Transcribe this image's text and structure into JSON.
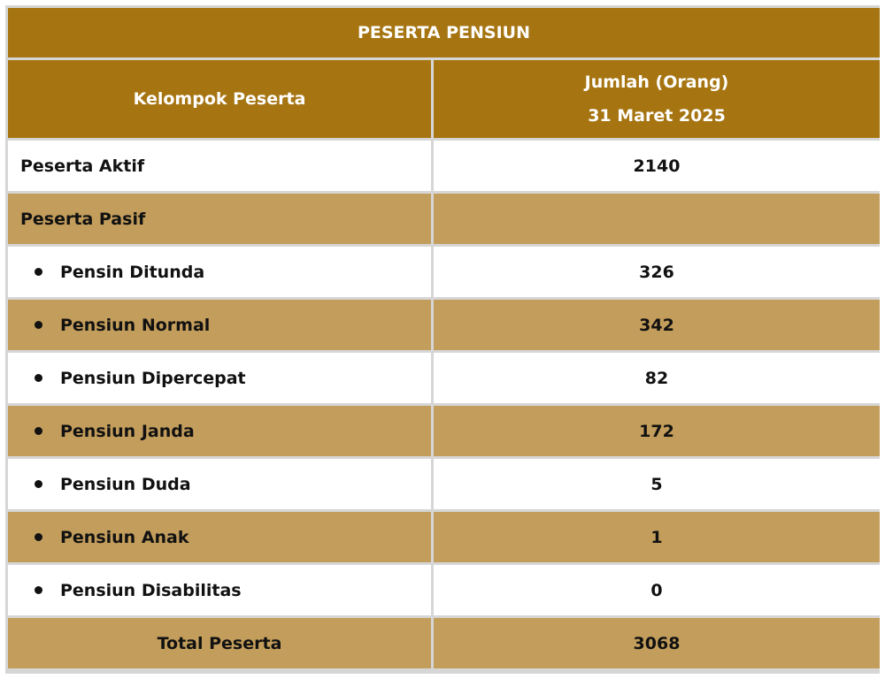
{
  "table": {
    "title": "PESERTA PENSIUN",
    "header": {
      "col1": "Kelompok Peserta",
      "col2_line1": "Jumlah (Orang)",
      "col2_line2": "31 Maret 2025"
    },
    "rows": [
      {
        "label": "Peserta Aktif",
        "value": "2140"
      },
      {
        "label": "Peserta Pasif",
        "value": ""
      },
      {
        "label": "Pensin Ditunda",
        "value": "326"
      },
      {
        "label": "Pensiun Normal",
        "value": "342"
      },
      {
        "label": "Pensiun Dipercepat",
        "value": "82"
      },
      {
        "label": "Pensiun Janda",
        "value": "172"
      },
      {
        "label": "Pensiun Duda",
        "value": "5"
      },
      {
        "label": "Pensiun Anak",
        "value": "1"
      },
      {
        "label": "Pensiun Disabilitas",
        "value": "0"
      }
    ],
    "total": {
      "label": "Total Peserta",
      "value": "3068"
    }
  },
  "colors": {
    "header": "#a67512",
    "band": "#c39d5b",
    "white": "#ffffff",
    "border": "#d6d6d6"
  }
}
